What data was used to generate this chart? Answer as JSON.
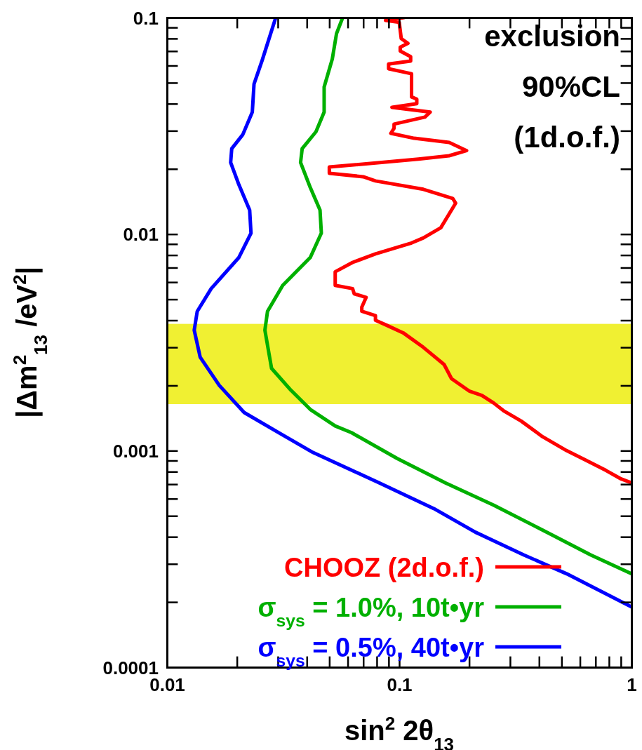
{
  "chart_data": {
    "type": "line",
    "xlabel": "sin$^{2}$ 2θ$_{13}$",
    "ylabel": "|Δm$^{2}$$_{13}$ /eV$^{2}$|",
    "log": "xy",
    "line_style": "solid",
    "legend": "bottom left",
    "annotations": [
      "exclusion\n90%CL\n(1d.o.f.)"
    ],
    "xlim": [
      0.01,
      1
    ],
    "ylim": [
      0.0001,
      0.1
    ],
    "xticks": [
      0.01,
      {
        "value": 0.02,
        "label": null
      },
      {
        "value": 0.03,
        "label": null
      },
      {
        "value": 0.04,
        "label": null
      },
      {
        "value": 0.05,
        "label": null
      },
      {
        "value": 0.06,
        "label": null
      },
      {
        "value": 0.07,
        "label": null
      },
      {
        "value": 0.08,
        "label": null
      },
      {
        "value": 0.09,
        "label": null
      },
      0.1,
      {
        "value": 0.2,
        "label": null
      },
      {
        "value": 0.3,
        "label": null
      },
      {
        "value": 0.4,
        "label": null
      },
      {
        "value": 0.5,
        "label": null
      },
      {
        "value": 0.6,
        "label": null
      },
      {
        "value": 0.7,
        "label": null
      },
      {
        "value": 0.8,
        "label": null
      },
      {
        "value": 0.9,
        "label": null
      },
      1
    ],
    "yticks": [
      0.0001,
      {
        "value": 0.0002,
        "label": null
      },
      {
        "value": 0.0003,
        "label": null
      },
      {
        "value": 0.0004,
        "label": null
      },
      {
        "value": 0.0005,
        "label": null
      },
      {
        "value": 0.0006,
        "label": null
      },
      {
        "value": 0.0007,
        "label": null
      },
      {
        "value": 0.0008,
        "label": null
      },
      {
        "value": 0.0009,
        "label": null
      },
      0.001,
      {
        "value": 0.002,
        "label": null
      },
      {
        "value": 0.003,
        "label": null
      },
      {
        "value": 0.004,
        "label": null
      },
      {
        "value": 0.005,
        "label": null
      },
      {
        "value": 0.006,
        "label": null
      },
      {
        "value": 0.007,
        "label": null
      },
      {
        "value": 0.008,
        "label": null
      },
      {
        "value": 0.009,
        "label": null
      },
      0.01,
      {
        "value": 0.02,
        "label": null
      },
      {
        "value": 0.03,
        "label": null
      },
      {
        "value": 0.04,
        "label": null
      },
      {
        "value": 0.05,
        "label": null
      },
      {
        "value": 0.06,
        "label": null
      },
      {
        "value": 0.07,
        "label": null
      },
      {
        "value": 0.08,
        "label": null
      },
      {
        "value": 0.09,
        "label": null
      },
      0.1
    ],
    "bands": [
      {
        "axis": "y",
        "from": 0.00164,
        "to": 0.00385,
        "color": "#f0f032"
      }
    ],
    "series": [
      {
        "name": "CHOOZ (2d.o.f.)",
        "color": "#ff0000",
        "x": [
          0.105,
          0.0873,
          0.1,
          0.102,
          0.109,
          0.101,
          0.101,
          0.112,
          0.112,
          0.09,
          0.09,
          0.113,
          0.113,
          0.119,
          0.119,
          0.093,
          0.136,
          0.129,
          0.095,
          0.095,
          0.092,
          0.116,
          0.164,
          0.195,
          0.164,
          0.121,
          0.05,
          0.05,
          0.07,
          0.079,
          0.127,
          0.17,
          0.175,
          0.151,
          0.127,
          0.113,
          0.079,
          0.063,
          0.053,
          0.053,
          0.063,
          0.064,
          0.072,
          0.069,
          0.069,
          0.079,
          0.079,
          0.088,
          0.104,
          0.127,
          0.156,
          0.168,
          0.201,
          0.227,
          0.255,
          0.281,
          0.335,
          0.414,
          0.526,
          0.628,
          0.777,
          0.903,
          1.0
        ],
        "values": [
          0.1,
          0.097,
          0.095,
          0.08,
          0.076,
          0.073,
          0.07,
          0.066,
          0.063,
          0.061,
          0.058,
          0.055,
          0.043,
          0.042,
          0.04,
          0.0385,
          0.0366,
          0.0347,
          0.0322,
          0.0308,
          0.0292,
          0.0277,
          0.0265,
          0.0243,
          0.023,
          0.0222,
          0.0204,
          0.0191,
          0.0184,
          0.0176,
          0.0161,
          0.0146,
          0.0139,
          0.0107,
          0.0096,
          0.0091,
          0.0081,
          0.0074,
          0.0067,
          0.0058,
          0.0056,
          0.0053,
          0.0051,
          0.0046,
          0.0044,
          0.0042,
          0.004,
          0.0038,
          0.0035,
          0.003,
          0.0025,
          0.00215,
          0.00188,
          0.0018,
          0.00166,
          0.00153,
          0.00137,
          0.00116,
          0.001,
          0.00091,
          0.00081,
          0.00074,
          0.00071
        ]
      },
      {
        "name": "σ$_{sys}$ = 1.0%, 10t•yr",
        "color": "#00b000",
        "x": [
          0.0571,
          0.0537,
          0.0515,
          0.0475,
          0.0475,
          0.0438,
          0.0382,
          0.0376,
          0.0414,
          0.0456,
          0.0462,
          0.0414,
          0.0315,
          0.0271,
          0.0264,
          0.0282,
          0.0342,
          0.0414,
          0.053,
          0.0624,
          0.098,
          0.158,
          0.255,
          0.414,
          0.668,
          1.0
        ],
        "values": [
          0.1,
          0.0843,
          0.0644,
          0.0478,
          0.0366,
          0.0297,
          0.0248,
          0.0214,
          0.0164,
          0.0129,
          0.0101,
          0.0078,
          0.0058,
          0.0044,
          0.0036,
          0.0024,
          0.0019,
          0.00155,
          0.0013,
          0.00121,
          0.00092,
          0.00071,
          0.00056,
          0.00043,
          0.00033,
          0.00027
        ]
      },
      {
        "name": "σ$_{sys}$ = 0.5%, 40t•yr",
        "color": "#0000ff",
        "x": [
          0.0294,
          0.0257,
          0.0237,
          0.0233,
          0.0212,
          0.019,
          0.0188,
          0.0204,
          0.0227,
          0.023,
          0.0204,
          0.0155,
          0.0135,
          0.0131,
          0.0139,
          0.0168,
          0.0215,
          0.0307,
          0.0426,
          0.082,
          0.141,
          0.213,
          0.344,
          0.526,
          1.0
        ],
        "values": [
          0.1,
          0.0635,
          0.0493,
          0.0366,
          0.0288,
          0.0248,
          0.0214,
          0.0169,
          0.0129,
          0.0101,
          0.0078,
          0.0056,
          0.0044,
          0.0036,
          0.0027,
          0.002,
          0.0015,
          0.0012,
          0.00098,
          0.00071,
          0.00054,
          0.00042,
          0.00033,
          0.00027,
          0.00019
        ]
      }
    ]
  }
}
